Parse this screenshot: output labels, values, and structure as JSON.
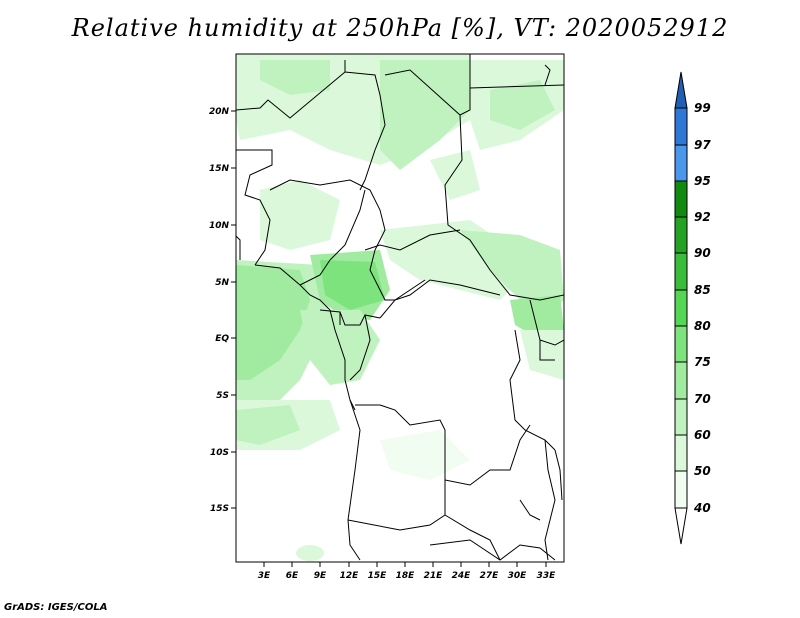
{
  "map": {
    "title": "Relative humidity at 250hPa [%], VT: 2020052912",
    "footer": "GrADS: IGES/COLA",
    "lat_labels": [
      "20N",
      "15N",
      "10N",
      "5N",
      "EQ",
      "5S",
      "10S",
      "15S"
    ],
    "lon_labels": [
      "3E",
      "6E",
      "9E",
      "12E",
      "15E",
      "18E",
      "21E",
      "24E",
      "27E",
      "30E",
      "33E"
    ],
    "extent": {
      "lon": [
        0,
        35
      ],
      "lat": [
        -20,
        25
      ]
    }
  },
  "colorbar": {
    "levels": [
      "99",
      "97",
      "95",
      "92",
      "90",
      "85",
      "80",
      "75",
      "70",
      "60",
      "50",
      "40"
    ],
    "colors": [
      "#1f5fb4",
      "#2f78d8",
      "#4a97ec",
      "#128a12",
      "#25a225",
      "#3bbd3b",
      "#55d655",
      "#7de37d",
      "#a0eba0",
      "#bff2bf",
      "#dbf8db",
      "#f1fdf1"
    ]
  }
}
